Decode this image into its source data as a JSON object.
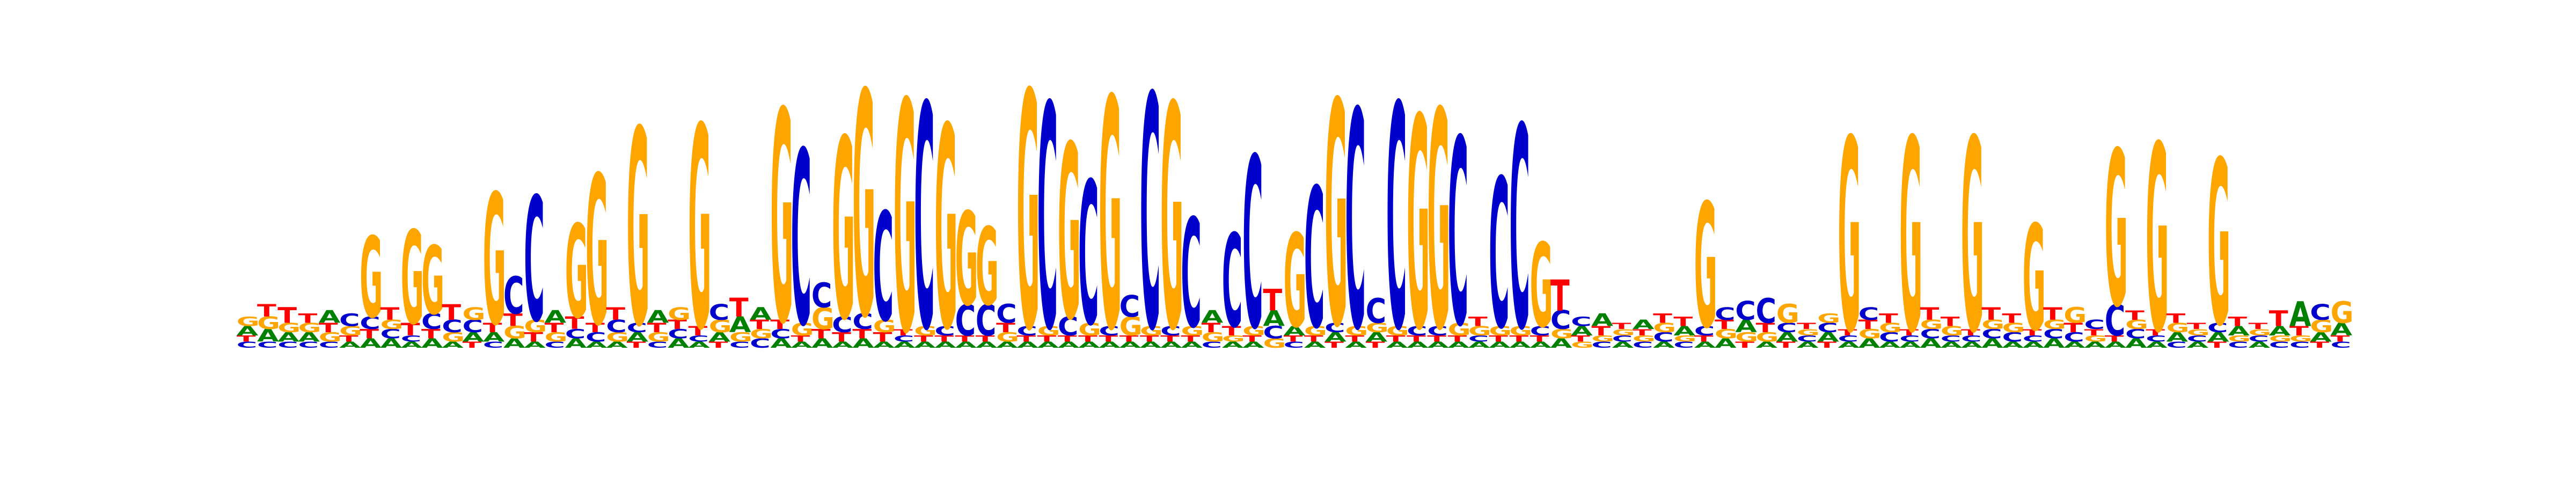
{
  "chart_data": {
    "type": "sequence-logo",
    "alphabet": [
      "A",
      "C",
      "G",
      "T"
    ],
    "colors": {
      "A": "#008000",
      "C": "#0000cc",
      "G": "#ffa500",
      "T": "#ff0000"
    },
    "ylim": [
      0,
      2
    ],
    "positions": [
      {
        "A": 0.03,
        "C": 0.02,
        "G": 0.03,
        "T": 0.02
      },
      {
        "A": 0.04,
        "C": 0.02,
        "G": 0.04,
        "T": 0.04
      },
      {
        "A": 0.03,
        "C": 0.02,
        "G": 0.03,
        "T": 0.05
      },
      {
        "A": 0.03,
        "C": 0.02,
        "G": 0.03,
        "T": 0.03
      },
      {
        "A": 0.04,
        "C": 0.02,
        "G": 0.03,
        "T": 0.03
      },
      {
        "A": 0.02,
        "C": 0.04,
        "G": 0.03,
        "T": 0.02
      },
      {
        "A": 0.03,
        "C": 0.04,
        "G": 0.26,
        "T": 0.03
      },
      {
        "A": 0.03,
        "C": 0.03,
        "G": 0.03,
        "T": 0.04
      },
      {
        "A": 0.02,
        "C": 0.02,
        "G": 0.3,
        "T": 0.04
      },
      {
        "A": 0.03,
        "C": 0.05,
        "G": 0.22,
        "T": 0.03
      },
      {
        "A": 0.02,
        "C": 0.04,
        "G": 0.03,
        "T": 0.05
      },
      {
        "A": 0.03,
        "C": 0.04,
        "G": 0.04,
        "T": 0.02
      },
      {
        "A": 0.03,
        "C": 0.02,
        "G": 0.42,
        "T": 0.03
      },
      {
        "A": 0.03,
        "C": 0.12,
        "G": 0.04,
        "T": 0.04
      },
      {
        "A": 0.02,
        "C": 0.4,
        "G": 0.04,
        "T": 0.03
      },
      {
        "A": 0.04,
        "C": 0.02,
        "G": 0.03,
        "T": 0.03
      },
      {
        "A": 0.03,
        "C": 0.03,
        "G": 0.3,
        "T": 0.04
      },
      {
        "A": 0.02,
        "C": 0.03,
        "G": 0.48,
        "T": 0.03
      },
      {
        "A": 0.02,
        "C": 0.04,
        "G": 0.03,
        "T": 0.04
      },
      {
        "A": 0.03,
        "C": 0.03,
        "G": 0.63,
        "T": 0.02
      },
      {
        "A": 0.04,
        "C": 0.02,
        "G": 0.03,
        "T": 0.03
      },
      {
        "A": 0.03,
        "C": 0.03,
        "G": 0.04,
        "T": 0.03
      },
      {
        "A": 0.02,
        "C": 0.02,
        "G": 0.65,
        "T": 0.03
      },
      {
        "A": 0.03,
        "C": 0.05,
        "G": 0.04,
        "T": 0.02
      },
      {
        "A": 0.05,
        "C": 0.02,
        "G": 0.03,
        "T": 0.06
      },
      {
        "A": 0.04,
        "C": 0.03,
        "G": 0.03,
        "T": 0.03
      },
      {
        "A": 0.03,
        "C": 0.03,
        "G": 0.68,
        "T": 0.03
      },
      {
        "A": 0.02,
        "C": 0.56,
        "G": 0.04,
        "T": 0.02
      },
      {
        "A": 0.03,
        "C": 0.08,
        "G": 0.07,
        "T": 0.03
      },
      {
        "A": 0.02,
        "C": 0.05,
        "G": 0.58,
        "T": 0.03
      },
      {
        "A": 0.03,
        "C": 0.05,
        "G": 0.72,
        "T": 0.03
      },
      {
        "A": 0.02,
        "C": 0.35,
        "G": 0.04,
        "T": 0.03
      },
      {
        "A": 0.02,
        "C": 0.02,
        "G": 0.74,
        "T": 0.02
      },
      {
        "A": 0.02,
        "C": 0.72,
        "G": 0.03,
        "T": 0.02
      },
      {
        "A": 0.02,
        "C": 0.03,
        "G": 0.65,
        "T": 0.02
      },
      {
        "A": 0.02,
        "C": 0.1,
        "G": 0.3,
        "T": 0.02
      },
      {
        "A": 0.02,
        "C": 0.1,
        "G": 0.25,
        "T": 0.02
      },
      {
        "A": 0.02,
        "C": 0.06,
        "G": 0.03,
        "T": 0.03
      },
      {
        "A": 0.02,
        "C": 0.03,
        "G": 0.76,
        "T": 0.02
      },
      {
        "A": 0.02,
        "C": 0.72,
        "G": 0.03,
        "T": 0.02
      },
      {
        "A": 0.02,
        "C": 0.06,
        "G": 0.56,
        "T": 0.02
      },
      {
        "A": 0.02,
        "C": 0.46,
        "G": 0.04,
        "T": 0.02
      },
      {
        "A": 0.02,
        "C": 0.03,
        "G": 0.74,
        "T": 0.02
      },
      {
        "A": 0.02,
        "C": 0.07,
        "G": 0.06,
        "T": 0.02
      },
      {
        "A": 0.02,
        "C": 0.75,
        "G": 0.03,
        "T": 0.02
      },
      {
        "A": 0.02,
        "C": 0.03,
        "G": 0.72,
        "T": 0.02
      },
      {
        "A": 0.02,
        "C": 0.35,
        "G": 0.03,
        "T": 0.02
      },
      {
        "A": 0.04,
        "C": 0.02,
        "G": 0.03,
        "T": 0.03
      },
      {
        "A": 0.02,
        "C": 0.3,
        "G": 0.02,
        "T": 0.03
      },
      {
        "A": 0.02,
        "C": 0.55,
        "G": 0.03,
        "T": 0.02
      },
      {
        "A": 0.05,
        "C": 0.04,
        "G": 0.03,
        "T": 0.07
      },
      {
        "A": 0.03,
        "C": 0.02,
        "G": 0.3,
        "T": 0.02
      },
      {
        "A": 0.02,
        "C": 0.45,
        "G": 0.03,
        "T": 0.02
      },
      {
        "A": 0.03,
        "C": 0.03,
        "G": 0.72,
        "T": 0.02
      },
      {
        "A": 0.02,
        "C": 0.7,
        "G": 0.03,
        "T": 0.02
      },
      {
        "A": 0.03,
        "C": 0.08,
        "G": 0.03,
        "T": 0.02
      },
      {
        "A": 0.02,
        "C": 0.72,
        "G": 0.03,
        "T": 0.02
      },
      {
        "A": 0.02,
        "C": 0.03,
        "G": 0.68,
        "T": 0.02
      },
      {
        "A": 0.02,
        "C": 0.03,
        "G": 0.7,
        "T": 0.02
      },
      {
        "A": 0.02,
        "C": 0.6,
        "G": 0.04,
        "T": 0.02
      },
      {
        "A": 0.02,
        "C": 0.02,
        "G": 0.03,
        "T": 0.03
      },
      {
        "A": 0.02,
        "C": 0.48,
        "G": 0.03,
        "T": 0.02
      },
      {
        "A": 0.02,
        "C": 0.65,
        "G": 0.03,
        "T": 0.02
      },
      {
        "A": 0.02,
        "C": 0.03,
        "G": 0.27,
        "T": 0.02
      },
      {
        "A": 0.03,
        "C": 0.06,
        "G": 0.03,
        "T": 0.1
      },
      {
        "A": 0.03,
        "C": 0.03,
        "G": 0.02,
        "T": 0.02
      },
      {
        "A": 0.04,
        "C": 0.02,
        "G": 0.02,
        "T": 0.03
      },
      {
        "A": 0.02,
        "C": 0.02,
        "G": 0.02,
        "T": 0.02
      },
      {
        "A": 0.03,
        "C": 0.02,
        "G": 0.02,
        "T": 0.02
      },
      {
        "A": 0.02,
        "C": 0.03,
        "G": 0.03,
        "T": 0.03
      },
      {
        "A": 0.03,
        "C": 0.02,
        "G": 0.02,
        "T": 0.03
      },
      {
        "A": 0.02,
        "C": 0.03,
        "G": 0.4,
        "T": 0.02
      },
      {
        "A": 0.03,
        "C": 0.04,
        "G": 0.03,
        "T": 0.03
      },
      {
        "A": 0.04,
        "C": 0.06,
        "G": 0.03,
        "T": 0.02
      },
      {
        "A": 0.02,
        "C": 0.08,
        "G": 0.03,
        "T": 0.03
      },
      {
        "A": 0.03,
        "C": 0.03,
        "G": 0.06,
        "T": 0.02
      },
      {
        "A": 0.02,
        "C": 0.02,
        "G": 0.02,
        "T": 0.02
      },
      {
        "A": 0.03,
        "C": 0.03,
        "G": 0.03,
        "T": 0.02
      },
      {
        "A": 0.02,
        "C": 0.02,
        "G": 0.62,
        "T": 0.02
      },
      {
        "A": 0.03,
        "C": 0.04,
        "G": 0.03,
        "T": 0.03
      },
      {
        "A": 0.02,
        "C": 0.03,
        "G": 0.03,
        "T": 0.03
      },
      {
        "A": 0.02,
        "C": 0.02,
        "G": 0.62,
        "T": 0.02
      },
      {
        "A": 0.03,
        "C": 0.03,
        "G": 0.03,
        "T": 0.04
      },
      {
        "A": 0.02,
        "C": 0.02,
        "G": 0.03,
        "T": 0.03
      },
      {
        "A": 0.02,
        "C": 0.02,
        "G": 0.62,
        "T": 0.02
      },
      {
        "A": 0.03,
        "C": 0.03,
        "G": 0.03,
        "T": 0.04
      },
      {
        "A": 0.02,
        "C": 0.03,
        "G": 0.03,
        "T": 0.03
      },
      {
        "A": 0.02,
        "C": 0.02,
        "G": 0.34,
        "T": 0.02
      },
      {
        "A": 0.03,
        "C": 0.03,
        "G": 0.03,
        "T": 0.04
      },
      {
        "A": 0.02,
        "C": 0.03,
        "G": 0.05,
        "T": 0.03
      },
      {
        "A": 0.02,
        "C": 0.03,
        "G": 0.02,
        "T": 0.02
      },
      {
        "A": 0.02,
        "C": 0.1,
        "G": 0.5,
        "T": 0.02
      },
      {
        "A": 0.03,
        "C": 0.03,
        "G": 0.03,
        "T": 0.03
      },
      {
        "A": 0.02,
        "C": 0.02,
        "G": 0.6,
        "T": 0.02
      },
      {
        "A": 0.03,
        "C": 0.02,
        "G": 0.03,
        "T": 0.03
      },
      {
        "A": 0.02,
        "C": 0.02,
        "G": 0.02,
        "T": 0.02
      },
      {
        "A": 0.03,
        "C": 0.03,
        "G": 0.53,
        "T": 0.02
      },
      {
        "A": 0.03,
        "C": 0.02,
        "G": 0.02,
        "T": 0.03
      },
      {
        "A": 0.02,
        "C": 0.02,
        "G": 0.02,
        "T": 0.02
      },
      {
        "A": 0.03,
        "C": 0.02,
        "G": 0.02,
        "T": 0.05
      },
      {
        "A": 0.08,
        "C": 0.02,
        "G": 0.02,
        "T": 0.03
      },
      {
        "A": 0.03,
        "C": 0.05,
        "G": 0.04,
        "T": 0.02
      },
      {
        "A": 0.04,
        "C": 0.02,
        "G": 0.07,
        "T": 0.02
      }
    ]
  }
}
